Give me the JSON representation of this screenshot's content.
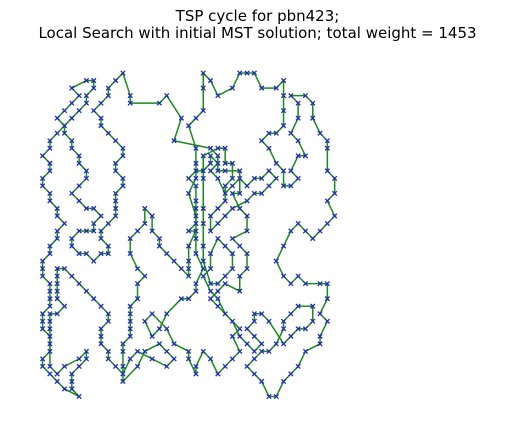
{
  "chart_data": {
    "type": "scatter",
    "title": "TSP cycle for pbn423;\nLocal Search with initial MST solution; total weight = 1453",
    "title_lines": [
      "TSP cycle for pbn423;",
      "Local Search with initial MST solution; total weight = 1453"
    ],
    "xlabel": "",
    "ylabel": "",
    "axes_visible": false,
    "grid": false,
    "xlim": [
      0,
      63
    ],
    "ylim": [
      0,
      46
    ],
    "edge_color": "#1a8a1a",
    "marker_color": "#1f2bb8",
    "marker": "x",
    "tour": [
      [
        13,
        44
      ],
      [
        14,
        41
      ],
      [
        14,
        40
      ],
      [
        18,
        40
      ],
      [
        19,
        41
      ],
      [
        21,
        38
      ],
      [
        20,
        35
      ],
      [
        25,
        34
      ],
      [
        26,
        33
      ],
      [
        26,
        31
      ],
      [
        27,
        31
      ],
      [
        29,
        31
      ],
      [
        29,
        28
      ],
      [
        28,
        28
      ],
      [
        29,
        26
      ],
      [
        30,
        25
      ],
      [
        30,
        23
      ],
      [
        28,
        22
      ],
      [
        29,
        21
      ],
      [
        30,
        20
      ],
      [
        30,
        18
      ],
      [
        29,
        17
      ],
      [
        29,
        15
      ],
      [
        27,
        16
      ],
      [
        26,
        15
      ],
      [
        25,
        14
      ],
      [
        26,
        13
      ],
      [
        27,
        12
      ],
      [
        28,
        11
      ],
      [
        29,
        10
      ],
      [
        28,
        9
      ],
      [
        29,
        7
      ],
      [
        28,
        6
      ],
      [
        27,
        5
      ],
      [
        26,
        4
      ],
      [
        25,
        6
      ],
      [
        24,
        7
      ],
      [
        23,
        5
      ],
      [
        23,
        4
      ],
      [
        22,
        6
      ],
      [
        22,
        7
      ],
      [
        20,
        8
      ],
      [
        19,
        10
      ],
      [
        17,
        12
      ],
      [
        16,
        11
      ],
      [
        17,
        9
      ],
      [
        18,
        10
      ],
      [
        19,
        12
      ],
      [
        21,
        14
      ],
      [
        22,
        14
      ],
      [
        23,
        15
      ],
      [
        23,
        16
      ],
      [
        24,
        18
      ],
      [
        23,
        20
      ],
      [
        23,
        22
      ],
      [
        23,
        25
      ],
      [
        22,
        28
      ],
      [
        23,
        30
      ],
      [
        23,
        32
      ],
      [
        23,
        34
      ],
      [
        22,
        37
      ],
      [
        23,
        38
      ],
      [
        24,
        39
      ],
      [
        24,
        42
      ],
      [
        24,
        44
      ],
      [
        25,
        43
      ],
      [
        26,
        41
      ],
      [
        28,
        42
      ],
      [
        29,
        44
      ],
      [
        30,
        44
      ],
      [
        31,
        44
      ],
      [
        32,
        42
      ],
      [
        34,
        42
      ],
      [
        35,
        43
      ],
      [
        35,
        41
      ],
      [
        35,
        39
      ],
      [
        35,
        37
      ],
      [
        34,
        36
      ],
      [
        33,
        36
      ],
      [
        32,
        35
      ],
      [
        33,
        34
      ],
      [
        34,
        32
      ],
      [
        35,
        31
      ],
      [
        35,
        29
      ],
      [
        36,
        29
      ],
      [
        37,
        30
      ],
      [
        36,
        31
      ],
      [
        37,
        33
      ],
      [
        38,
        33
      ],
      [
        37,
        35
      ],
      [
        36,
        36
      ],
      [
        37,
        38
      ],
      [
        37,
        40
      ],
      [
        36,
        41
      ],
      [
        38,
        41
      ],
      [
        39,
        40
      ],
      [
        39,
        38
      ],
      [
        40,
        36
      ],
      [
        41,
        35
      ],
      [
        41,
        34
      ],
      [
        41,
        31
      ],
      [
        42,
        30
      ],
      [
        42,
        28
      ],
      [
        41,
        27
      ],
      [
        42,
        25
      ],
      [
        41,
        24
      ],
      [
        40,
        23
      ],
      [
        39,
        22
      ],
      [
        38,
        23
      ],
      [
        37,
        24
      ],
      [
        36,
        23
      ],
      [
        35,
        21
      ],
      [
        34,
        19
      ],
      [
        35,
        17
      ],
      [
        36,
        16
      ],
      [
        37,
        17
      ],
      [
        38,
        16
      ],
      [
        40,
        16
      ],
      [
        41,
        16
      ],
      [
        41,
        14
      ],
      [
        40,
        12
      ],
      [
        41,
        11
      ],
      [
        40,
        9
      ],
      [
        40,
        8
      ],
      [
        38,
        7
      ],
      [
        37,
        5
      ],
      [
        36,
        4
      ],
      [
        35,
        3
      ],
      [
        34,
        1
      ],
      [
        33,
        1
      ],
      [
        32,
        3
      ],
      [
        31,
        4
      ],
      [
        30,
        5
      ],
      [
        31,
        6
      ],
      [
        32,
        7
      ],
      [
        33,
        7
      ],
      [
        34,
        8
      ],
      [
        35,
        10
      ],
      [
        35,
        11
      ],
      [
        36,
        12
      ],
      [
        37,
        13
      ],
      [
        39,
        13
      ],
      [
        39,
        11
      ],
      [
        38,
        10
      ],
      [
        37,
        10
      ],
      [
        36,
        9
      ],
      [
        35,
        8
      ],
      [
        33,
        11
      ],
      [
        32,
        12
      ],
      [
        31,
        12
      ],
      [
        31,
        11
      ],
      [
        30,
        10
      ],
      [
        31,
        9
      ],
      [
        32,
        8
      ],
      [
        31,
        7
      ],
      [
        30,
        8
      ],
      [
        29,
        9
      ],
      [
        28,
        11
      ],
      [
        27,
        12
      ],
      [
        26,
        14
      ],
      [
        25,
        15
      ],
      [
        24,
        17
      ],
      [
        25,
        18
      ],
      [
        25,
        20
      ],
      [
        26,
        22
      ],
      [
        27,
        21
      ],
      [
        28,
        20
      ],
      [
        28,
        18
      ],
      [
        27,
        17
      ],
      [
        26,
        16
      ],
      [
        25,
        16
      ],
      [
        24,
        19
      ],
      [
        24,
        21
      ],
      [
        24,
        24
      ],
      [
        24,
        26
      ],
      [
        24,
        30
      ],
      [
        24,
        33
      ],
      [
        26,
        34
      ],
      [
        27,
        34
      ],
      [
        27,
        32
      ],
      [
        28,
        32
      ],
      [
        28,
        30
      ],
      [
        27,
        29
      ],
      [
        27,
        27
      ],
      [
        26,
        26
      ],
      [
        25,
        25
      ],
      [
        25,
        23
      ],
      [
        26,
        24
      ],
      [
        27,
        25
      ],
      [
        28,
        26
      ],
      [
        30,
        27
      ],
      [
        31,
        28
      ],
      [
        32,
        28
      ],
      [
        33,
        29
      ],
      [
        34,
        30
      ],
      [
        33,
        31
      ],
      [
        32,
        30
      ],
      [
        31,
        30
      ],
      [
        30,
        29
      ],
      [
        29,
        30
      ],
      [
        28,
        29
      ],
      [
        27,
        28
      ],
      [
        26,
        30
      ],
      [
        25,
        31
      ],
      [
        26,
        32
      ],
      [
        25,
        33
      ],
      [
        25,
        32
      ],
      [
        24,
        31
      ],
      [
        23,
        31
      ],
      [
        22,
        30
      ],
      [
        23,
        29
      ],
      [
        23,
        27
      ],
      [
        23,
        26
      ],
      [
        23,
        24
      ],
      [
        22,
        23
      ],
      [
        23,
        23
      ],
      [
        22,
        21
      ],
      [
        22,
        19
      ],
      [
        22,
        18
      ],
      [
        22,
        17
      ],
      [
        21,
        18
      ],
      [
        20,
        19
      ],
      [
        19,
        20
      ],
      [
        18,
        21
      ],
      [
        18,
        22
      ],
      [
        17,
        23
      ],
      [
        17,
        25
      ],
      [
        16,
        26
      ],
      [
        16,
        24
      ],
      [
        15,
        23
      ],
      [
        14,
        22
      ],
      [
        14,
        20
      ],
      [
        15,
        18
      ],
      [
        16,
        17
      ],
      [
        15,
        16
      ],
      [
        15,
        14
      ],
      [
        14,
        13
      ],
      [
        14,
        12
      ],
      [
        14,
        11
      ],
      [
        14,
        10
      ],
      [
        14,
        9
      ],
      [
        13,
        8
      ],
      [
        13,
        7
      ],
      [
        13,
        5
      ],
      [
        13,
        3
      ],
      [
        15,
        5
      ],
      [
        16,
        7
      ],
      [
        18,
        8
      ],
      [
        19,
        7
      ],
      [
        20,
        6
      ],
      [
        19,
        5
      ],
      [
        17,
        6
      ],
      [
        15,
        7
      ],
      [
        14,
        6
      ],
      [
        13,
        4
      ],
      [
        12,
        5
      ],
      [
        11,
        6
      ],
      [
        11,
        7
      ],
      [
        10,
        8
      ],
      [
        10,
        9
      ],
      [
        10,
        10
      ],
      [
        11,
        11
      ],
      [
        11,
        12
      ],
      [
        10,
        13
      ],
      [
        9,
        14
      ],
      [
        8,
        15
      ],
      [
        7,
        16
      ],
      [
        6,
        17
      ],
      [
        5,
        18
      ],
      [
        4,
        18
      ],
      [
        4,
        17
      ],
      [
        4,
        16
      ],
      [
        4,
        15
      ],
      [
        4,
        14
      ],
      [
        5,
        13
      ],
      [
        4,
        12
      ],
      [
        3,
        12
      ],
      [
        3,
        11
      ],
      [
        3,
        10
      ],
      [
        3,
        9
      ],
      [
        3,
        8
      ],
      [
        3,
        7
      ],
      [
        3,
        5
      ],
      [
        4,
        4
      ],
      [
        5,
        5
      ],
      [
        7,
        6
      ],
      [
        8,
        7
      ],
      [
        8,
        6
      ],
      [
        7,
        5
      ],
      [
        6,
        4
      ],
      [
        6,
        3
      ],
      [
        6,
        2
      ],
      [
        7,
        1
      ],
      [
        5,
        2
      ],
      [
        4,
        3
      ],
      [
        3,
        4
      ],
      [
        2,
        5
      ],
      [
        2,
        6
      ],
      [
        3,
        7
      ],
      [
        3,
        9
      ],
      [
        2,
        10
      ],
      [
        2,
        11
      ],
      [
        2,
        12
      ],
      [
        3,
        13
      ],
      [
        3,
        14
      ],
      [
        3,
        15
      ],
      [
        3,
        16
      ],
      [
        2,
        17
      ],
      [
        2,
        18
      ],
      [
        2,
        19
      ],
      [
        3,
        20
      ],
      [
        3,
        21
      ],
      [
        4,
        22
      ],
      [
        4,
        23
      ],
      [
        5,
        24
      ],
      [
        4,
        25
      ],
      [
        4,
        26
      ],
      [
        3,
        27
      ],
      [
        3,
        28
      ],
      [
        2,
        29
      ],
      [
        2,
        30
      ],
      [
        3,
        31
      ],
      [
        3,
        32
      ],
      [
        2,
        33
      ],
      [
        3,
        34
      ],
      [
        3,
        35
      ],
      [
        4,
        36
      ],
      [
        5,
        37
      ],
      [
        4,
        38
      ],
      [
        5,
        39
      ],
      [
        6,
        40
      ],
      [
        7,
        41
      ],
      [
        6,
        42
      ],
      [
        8,
        43
      ],
      [
        9,
        43
      ],
      [
        9,
        42
      ],
      [
        8,
        41
      ],
      [
        8,
        40
      ],
      [
        7,
        39
      ],
      [
        6,
        38
      ],
      [
        5,
        37
      ],
      [
        5,
        36
      ],
      [
        6,
        35
      ],
      [
        6,
        34
      ],
      [
        7,
        33
      ],
      [
        7,
        32
      ],
      [
        8,
        31
      ],
      [
        8,
        30
      ],
      [
        7,
        29
      ],
      [
        6,
        28
      ],
      [
        7,
        27
      ],
      [
        8,
        26
      ],
      [
        9,
        26
      ],
      [
        10,
        25
      ],
      [
        9,
        24
      ],
      [
        9,
        23
      ],
      [
        8,
        23
      ],
      [
        7,
        23
      ],
      [
        6,
        22
      ],
      [
        6,
        21
      ],
      [
        7,
        20
      ],
      [
        8,
        20
      ],
      [
        9,
        19
      ],
      [
        10,
        20
      ],
      [
        11,
        20
      ],
      [
        11,
        21
      ],
      [
        10,
        22
      ],
      [
        10,
        23
      ],
      [
        11,
        24
      ],
      [
        12,
        25
      ],
      [
        12,
        26
      ],
      [
        12,
        27
      ],
      [
        12,
        28
      ],
      [
        13,
        29
      ],
      [
        13,
        30
      ],
      [
        12,
        31
      ],
      [
        12,
        32
      ],
      [
        13,
        33
      ],
      [
        13,
        34
      ],
      [
        12,
        35
      ],
      [
        11,
        36
      ],
      [
        10,
        37
      ],
      [
        10,
        38
      ],
      [
        9,
        39
      ],
      [
        10,
        40
      ],
      [
        11,
        41
      ],
      [
        11,
        42
      ],
      [
        12,
        43
      ],
      [
        13,
        44
      ]
    ]
  }
}
